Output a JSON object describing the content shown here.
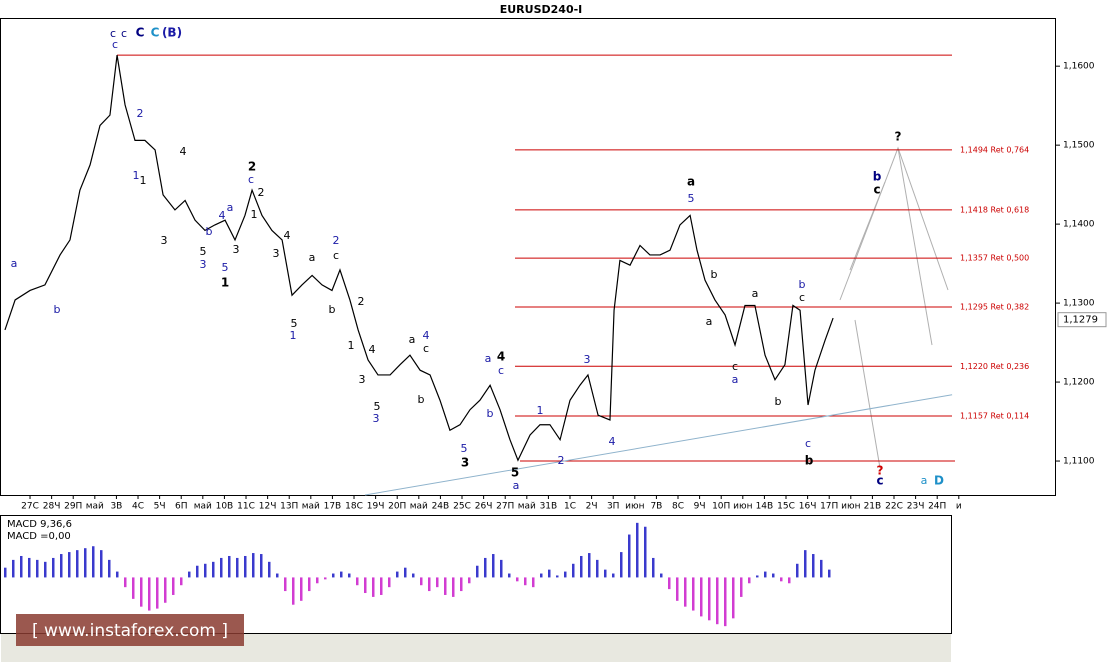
{
  "chart_data": {
    "type": "line",
    "title": "EURUSD240-I",
    "categories": [
      "27С",
      "28Ч",
      "29П",
      "май",
      "3В",
      "4С",
      "5Ч",
      "6П",
      "май",
      "10В",
      "11С",
      "12Ч",
      "13П",
      "май",
      "17В",
      "18С",
      "19Ч",
      "20П",
      "май",
      "24В",
      "25С",
      "26Ч",
      "27П",
      "май",
      "31В",
      "1С",
      "2Ч",
      "3П",
      "июн",
      "7В",
      "8С",
      "9Ч",
      "10П",
      "июн",
      "14В",
      "15С",
      "16Ч",
      "17П",
      "июн",
      "21В",
      "22С",
      "23Ч",
      "24П",
      "и"
    ],
    "xlim": [
      -1.39,
      47.5
    ],
    "ylim": [
      1.1057,
      1.1661
    ],
    "yticks": [
      {
        "value": 1.16,
        "label": "1,1600"
      },
      {
        "value": 1.15,
        "label": "1,1500"
      },
      {
        "value": 1.14,
        "label": "1,1400"
      },
      {
        "value": 1.13,
        "label": "1,1300"
      },
      {
        "value": 1.12,
        "label": "1,1200"
      },
      {
        "value": 1.11,
        "label": "1,1100"
      }
    ],
    "price": {
      "color": "#000000",
      "x": [
        -1.16,
        -0.69,
        0,
        0.69,
        1.39,
        1.85,
        2.31,
        2.78,
        3.24,
        3.7,
        4.03,
        4.4,
        4.86,
        5.32,
        5.79,
        6.16,
        6.71,
        7.18,
        7.64,
        8.1,
        8.56,
        9.03,
        9.49,
        9.95,
        10.28,
        10.74,
        11.2,
        11.67,
        12.13,
        12.59,
        13.06,
        13.52,
        13.98,
        14.35,
        14.81,
        15.19,
        15.65,
        16.11,
        16.67,
        17.13,
        17.59,
        18.06,
        18.52,
        18.98,
        19.44,
        19.91,
        20.37,
        20.83,
        21.3,
        21.76,
        22.22,
        22.59,
        23.15,
        23.61,
        24.07,
        24.54,
        25,
        25.46,
        25.83,
        26.3,
        26.85,
        27.04,
        27.31,
        27.78,
        28.24,
        28.7,
        29.17,
        29.63,
        30.09,
        30.56,
        30.88,
        31.25,
        31.71,
        32.18,
        32.64,
        33.1,
        33.56,
        34.03,
        34.49,
        34.95,
        35.32,
        35.65,
        36.02,
        36.34,
        36.81,
        37.18
      ],
      "values": [
        1.1266,
        1.1304,
        1.1316,
        1.1323,
        1.1361,
        1.138,
        1.1443,
        1.1475,
        1.1525,
        1.1538,
        1.1614,
        1.1551,
        1.1506,
        1.1506,
        1.1494,
        1.1437,
        1.1418,
        1.143,
        1.1405,
        1.1392,
        1.1399,
        1.1405,
        1.138,
        1.1411,
        1.1443,
        1.1411,
        1.1392,
        1.138,
        1.131,
        1.1323,
        1.1335,
        1.1323,
        1.1316,
        1.1342,
        1.1304,
        1.1266,
        1.1228,
        1.1209,
        1.1209,
        1.1222,
        1.1234,
        1.1215,
        1.1209,
        1.1177,
        1.1139,
        1.1146,
        1.1165,
        1.1177,
        1.1196,
        1.1165,
        1.1127,
        1.1101,
        1.1133,
        1.1146,
        1.1146,
        1.1127,
        1.1177,
        1.1196,
        1.1209,
        1.1158,
        1.1152,
        1.1291,
        1.1354,
        1.1348,
        1.1373,
        1.1361,
        1.1361,
        1.1367,
        1.1399,
        1.1411,
        1.1367,
        1.1329,
        1.1304,
        1.1285,
        1.1247,
        1.1297,
        1.1297,
        1.1234,
        1.1203,
        1.1222,
        1.1297,
        1.1291,
        1.1171,
        1.1215,
        1.1253,
        1.1281
      ]
    },
    "current_price": {
      "value": 1.1279,
      "label": "1,1279"
    },
    "levels": [
      {
        "value": 1.1494,
        "label": "1,1494 Ret 0,764"
      },
      {
        "value": 1.1418,
        "label": "1,1418 Ret 0,618"
      },
      {
        "value": 1.1357,
        "label": "1,1357 Ret 0,500"
      },
      {
        "value": 1.1295,
        "label": "1,1295 Ret 0,382"
      },
      {
        "value": 1.122,
        "label": "1,1220 Ret 0,236"
      },
      {
        "value": 1.1157,
        "label": "1,1157 Ret 0,114"
      }
    ],
    "level_color": "#cc0000",
    "top_line": 1.1614,
    "bottom_line": 1.11,
    "trend": {
      "x": [
        15.51,
        42.69
      ],
      "values": [
        1.1057,
        1.1184
      ],
      "color": "#8fb3cc"
    },
    "annotations": [
      "c",
      "c",
      "C",
      "C",
      "(B)",
      "c",
      "a",
      "b",
      "2",
      "1",
      "1",
      "4",
      "3",
      "2",
      "c",
      "2",
      "a",
      "4",
      "b",
      "5",
      "3",
      "3",
      "5",
      "1",
      "1",
      "4",
      "3",
      "2",
      "c",
      "a",
      "5",
      "1",
      "b",
      "2",
      "1",
      "4",
      "3",
      "5",
      "3",
      "4",
      "a",
      "c",
      "b",
      "5",
      "3",
      "a",
      "4",
      "c",
      "b",
      "1",
      "2",
      "3",
      "4",
      "5",
      "a",
      "a",
      "5",
      "b",
      "a",
      "c",
      "a",
      "a",
      "b",
      "b",
      "c",
      "c",
      "b",
      "?",
      "b",
      "c",
      "?",
      "c",
      "a",
      "D"
    ],
    "macd": {
      "label": "MACD 9,36,6",
      "value_label": "MACD =0,00",
      "ylim": [
        -56,
        62
      ],
      "positive_color": "#3a3acd",
      "negative_color": "#d23cd2",
      "values": [
        10,
        18,
        22,
        20,
        18,
        16,
        20,
        24,
        26,
        28,
        30,
        32,
        28,
        18,
        6,
        -10,
        -22,
        -30,
        -34,
        -32,
        -26,
        -18,
        -8,
        6,
        12,
        14,
        16,
        20,
        22,
        20,
        22,
        25,
        24,
        16,
        4,
        -14,
        -28,
        -24,
        -14,
        -6,
        -2,
        4,
        6,
        4,
        -8,
        -16,
        -20,
        -18,
        -10,
        6,
        10,
        4,
        -8,
        -14,
        -10,
        -18,
        -20,
        -14,
        -6,
        12,
        20,
        24,
        18,
        4,
        -4,
        -8,
        -10,
        4,
        8,
        2,
        6,
        14,
        22,
        25,
        18,
        8,
        4,
        26,
        44,
        56,
        52,
        20,
        4,
        -12,
        -24,
        -30,
        -34,
        -40,
        -44,
        -48,
        -50,
        -42,
        -20,
        -6,
        2,
        6,
        4,
        -4,
        -6,
        14,
        28,
        24,
        18,
        8
      ]
    },
    "watermark": "[ www.instaforex.com ]"
  }
}
